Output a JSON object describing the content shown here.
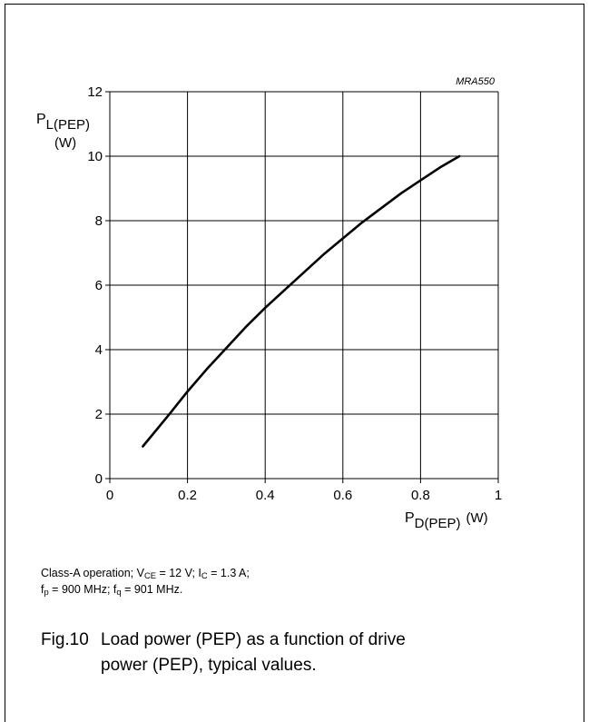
{
  "chart_data": {
    "type": "line",
    "ref_code": "MRA550",
    "xlabel": {
      "main": "P",
      "sub": "D(PEP)",
      "unit": "(W)"
    },
    "ylabel": {
      "main": "P",
      "sub": "L(PEP)",
      "unit": "(W)"
    },
    "xlim": [
      0,
      1
    ],
    "ylim": [
      0,
      12
    ],
    "x_ticks": [
      0,
      0.2,
      0.4,
      0.6,
      0.8,
      1
    ],
    "y_ticks": [
      0,
      2,
      4,
      6,
      8,
      10,
      12
    ],
    "grid": true,
    "series": [
      {
        "x": [
          0.085,
          0.15,
          0.2,
          0.25,
          0.3,
          0.35,
          0.4,
          0.45,
          0.5,
          0.55,
          0.6,
          0.65,
          0.7,
          0.75,
          0.8,
          0.85,
          0.9
        ],
        "y": [
          1.0,
          1.95,
          2.7,
          3.4,
          4.05,
          4.7,
          5.3,
          5.85,
          6.4,
          6.95,
          7.45,
          7.95,
          8.4,
          8.85,
          9.25,
          9.65,
          10.0
        ]
      }
    ]
  },
  "notes": {
    "line1": {
      "p1": "Class-A operation; V",
      "s1": "CE",
      "p2": " = 12 V; I",
      "s2": "C",
      "p3": " = 1.3 A;"
    },
    "line2": {
      "p1": "f",
      "s1": "p",
      "p2": " = 900 MHz; f",
      "s2": "q",
      "p3": " = 901 MHz."
    }
  },
  "caption": {
    "number": "Fig.10",
    "line1": "Load power (PEP) as a function of drive",
    "line2": "power (PEP), typical values."
  }
}
